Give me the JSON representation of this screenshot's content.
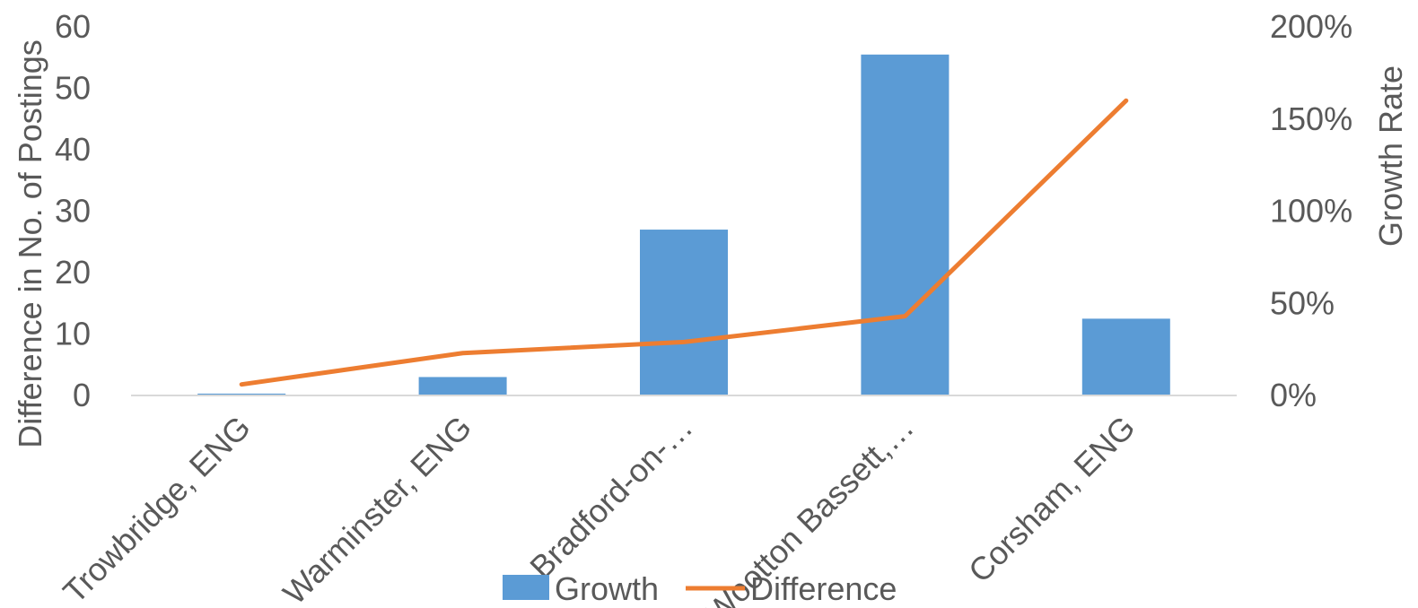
{
  "chart_data": {
    "type": "bar",
    "categories": [
      "Trowbridge, ENG",
      "Warminster, ENG",
      "Bradford-on-…",
      "Wootton Bassett,…",
      "Corsham, ENG"
    ],
    "series": [
      {
        "name": "Growth",
        "type": "bar",
        "axis": "left",
        "color": "#5B9BD5",
        "values": [
          0.3,
          3,
          27,
          55.5,
          12.5
        ]
      },
      {
        "name": "Difference",
        "type": "line",
        "axis": "right",
        "color": "#ED7D31",
        "values": [
          0.06,
          0.23,
          0.29,
          0.43,
          1.6
        ]
      }
    ],
    "ylabel": "Difference in No. of Postings",
    "y2label": "Growth Rate",
    "ylim": [
      0,
      60
    ],
    "y2lim": [
      0,
      2
    ],
    "yticks": [
      "0",
      "10",
      "20",
      "30",
      "40",
      "50",
      "60"
    ],
    "y2ticks": [
      "0%",
      "50%",
      "100%",
      "150%",
      "200%"
    ],
    "legend_position": "bottom",
    "grid": false
  }
}
